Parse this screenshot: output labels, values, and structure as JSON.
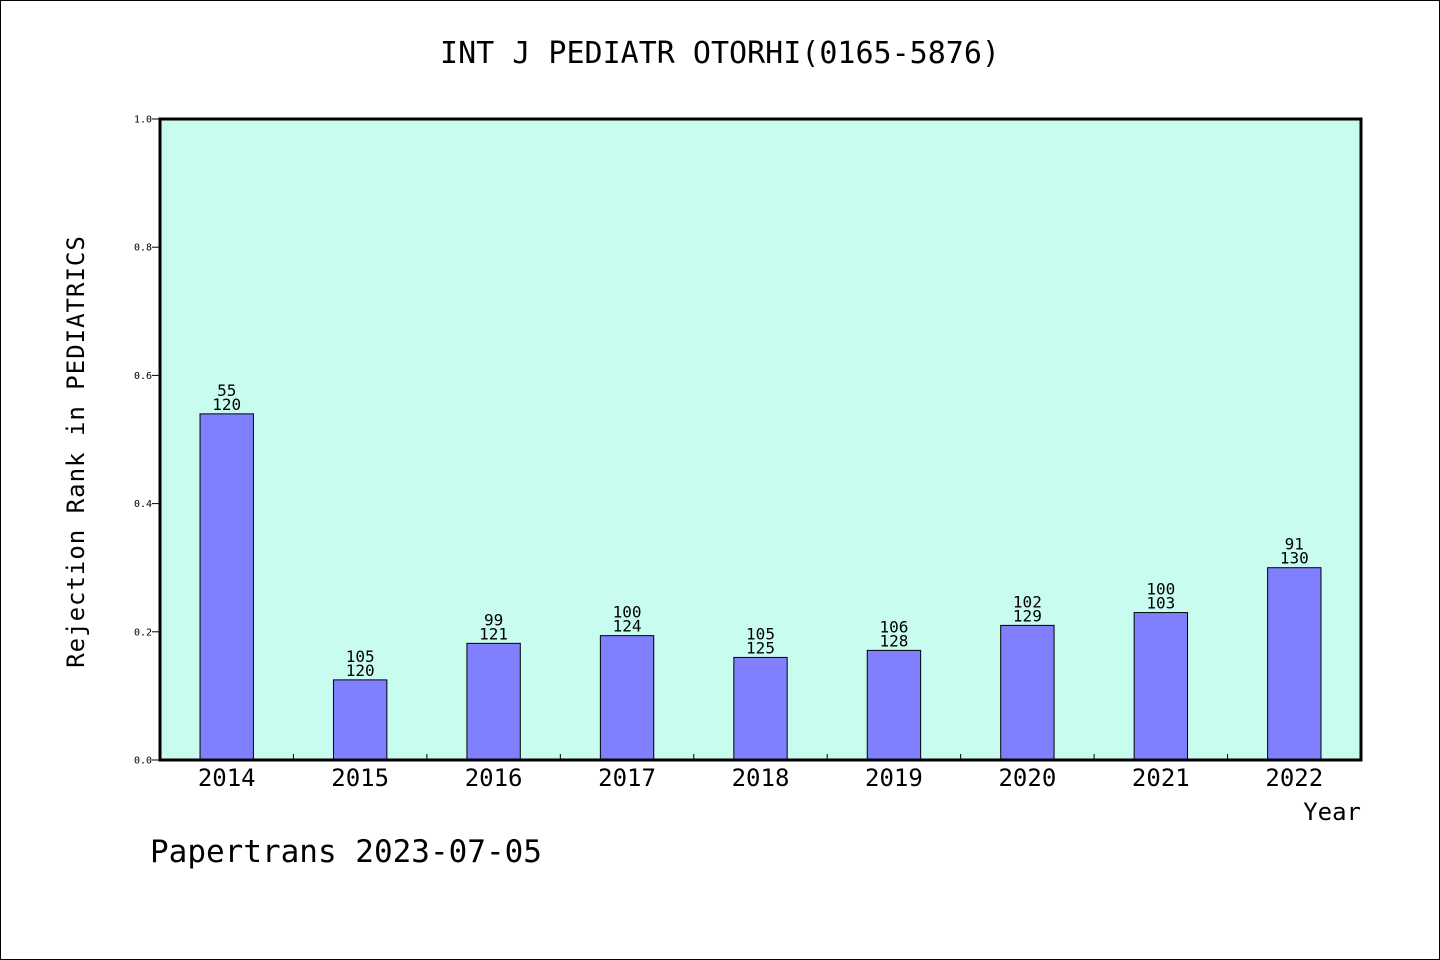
{
  "page": {
    "footer": "Papertrans 2023-07-05"
  },
  "colors": {
    "plot_background": "#c8fcee",
    "bar_fill": "#8080ff",
    "bar_stroke": "#000000",
    "frame": "#000000"
  },
  "chart_data": {
    "type": "bar",
    "title": "INT J PEDIATR OTORHI(0165-5876)",
    "xlabel": "Year",
    "ylabel": "Rejection Rank in PEDIATRICS",
    "categories": [
      "2014",
      "2015",
      "2016",
      "2017",
      "2018",
      "2019",
      "2020",
      "2021",
      "2022"
    ],
    "values": [
      0.54,
      0.125,
      0.182,
      0.194,
      0.16,
      0.171,
      0.21,
      0.23,
      0.3
    ],
    "bar_labels_top": [
      "55",
      "105",
      "99",
      "100",
      "105",
      "106",
      "102",
      "100",
      "91"
    ],
    "bar_labels_bottom": [
      "120",
      "120",
      "121",
      "124",
      "125",
      "128",
      "129",
      "103",
      "130"
    ],
    "ylim": [
      0,
      1.0
    ],
    "yticks": [
      "0.0",
      "0.2",
      "0.4",
      "0.6",
      "0.8",
      "1.0"
    ],
    "grid": false,
    "legend": "none"
  }
}
